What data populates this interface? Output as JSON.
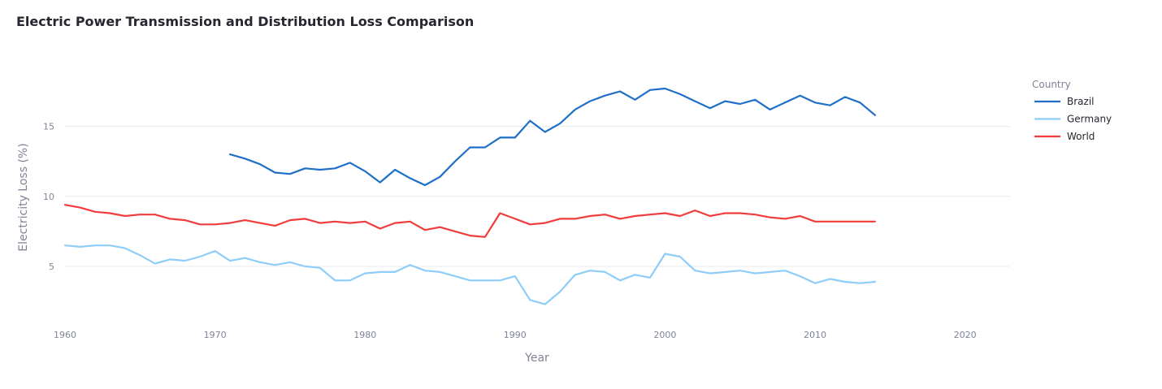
{
  "chart_data": {
    "type": "line",
    "title": "Electric Power Transmission and Distribution Loss Comparison",
    "xlabel": "Year",
    "ylabel": "Electricity Loss (%)",
    "xlim": [
      1960,
      2023
    ],
    "ylim": [
      1,
      19.5
    ],
    "xticks": [
      1960,
      1970,
      1980,
      1990,
      2000,
      2010,
      2020
    ],
    "yticks": [
      5,
      10,
      15
    ],
    "grid": true,
    "legend": {
      "title": "Country",
      "placement": "right"
    },
    "series": [
      {
        "name": "Brazil",
        "color": "#1f6fc9",
        "x": [
          1971,
          1972,
          1973,
          1974,
          1975,
          1976,
          1977,
          1978,
          1979,
          1980,
          1981,
          1982,
          1983,
          1984,
          1985,
          1986,
          1987,
          1988,
          1989,
          1990,
          1991,
          1992,
          1993,
          1994,
          1995,
          1996,
          1997,
          1998,
          1999,
          2000,
          2001,
          2002,
          2003,
          2004,
          2005,
          2006,
          2007,
          2008,
          2009,
          2010,
          2011,
          2012,
          2013,
          2014
        ],
        "y": [
          13.0,
          12.7,
          12.3,
          11.7,
          11.6,
          12.0,
          11.9,
          12.0,
          12.4,
          11.8,
          11.0,
          11.9,
          11.3,
          10.8,
          11.4,
          12.5,
          13.5,
          13.5,
          14.2,
          14.2,
          15.4,
          14.6,
          15.2,
          16.2,
          16.8,
          17.2,
          17.5,
          16.9,
          17.6,
          17.7,
          17.3,
          16.8,
          16.3,
          16.8,
          16.6,
          16.9,
          16.2,
          16.7,
          17.2,
          16.7,
          16.5,
          17.1,
          16.7,
          15.8
        ]
      },
      {
        "name": "Germany",
        "color": "#8ecdf8",
        "x": [
          1960,
          1961,
          1962,
          1963,
          1964,
          1965,
          1966,
          1967,
          1968,
          1969,
          1970,
          1971,
          1972,
          1973,
          1974,
          1975,
          1976,
          1977,
          1978,
          1979,
          1980,
          1981,
          1982,
          1983,
          1984,
          1985,
          1986,
          1987,
          1988,
          1989,
          1990,
          1991,
          1992,
          1993,
          1994,
          1995,
          1996,
          1997,
          1998,
          1999,
          2000,
          2001,
          2002,
          2003,
          2004,
          2005,
          2006,
          2007,
          2008,
          2009,
          2010,
          2011,
          2012,
          2013,
          2014
        ],
        "y": [
          6.5,
          6.4,
          6.5,
          6.5,
          6.3,
          5.8,
          5.2,
          5.5,
          5.4,
          5.7,
          6.1,
          5.4,
          5.6,
          5.3,
          5.1,
          5.3,
          5.0,
          4.9,
          4.0,
          4.0,
          4.5,
          4.6,
          4.6,
          5.1,
          4.7,
          4.6,
          4.3,
          4.0,
          4.0,
          4.0,
          4.3,
          2.6,
          2.3,
          3.2,
          4.4,
          4.7,
          4.6,
          4.0,
          4.4,
          4.2,
          5.9,
          5.7,
          4.7,
          4.5,
          4.6,
          4.7,
          4.5,
          4.6,
          4.7,
          4.3,
          3.8,
          4.1,
          3.9,
          3.8,
          3.9
        ]
      },
      {
        "name": "World",
        "color": "#f03c3c",
        "x": [
          1960,
          1961,
          1962,
          1963,
          1964,
          1965,
          1966,
          1967,
          1968,
          1969,
          1970,
          1971,
          1972,
          1973,
          1974,
          1975,
          1976,
          1977,
          1978,
          1979,
          1980,
          1981,
          1982,
          1983,
          1984,
          1985,
          1986,
          1987,
          1988,
          1989,
          1990,
          1991,
          1992,
          1993,
          1994,
          1995,
          1996,
          1997,
          1998,
          1999,
          2000,
          2001,
          2002,
          2003,
          2004,
          2005,
          2006,
          2007,
          2008,
          2009,
          2010,
          2011,
          2012,
          2013,
          2014
        ],
        "y": [
          9.4,
          9.2,
          8.9,
          8.8,
          8.6,
          8.7,
          8.7,
          8.4,
          8.3,
          8.0,
          8.0,
          8.1,
          8.3,
          8.1,
          7.9,
          8.3,
          8.4,
          8.1,
          8.2,
          8.1,
          8.2,
          7.7,
          8.1,
          8.2,
          7.6,
          7.8,
          7.5,
          7.2,
          7.1,
          8.8,
          8.4,
          8.0,
          8.1,
          8.4,
          8.4,
          8.6,
          8.7,
          8.4,
          8.6,
          8.7,
          8.8,
          8.6,
          9.0,
          8.6,
          8.8,
          8.8,
          8.7,
          8.5,
          8.4,
          8.6,
          8.2,
          8.2,
          8.2,
          8.2,
          8.2
        ]
      }
    ]
  }
}
